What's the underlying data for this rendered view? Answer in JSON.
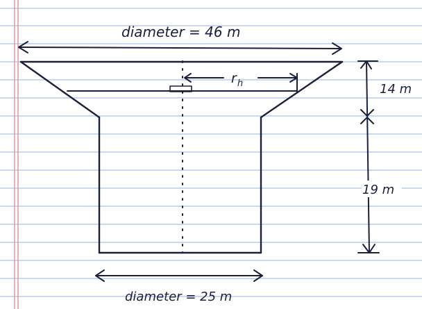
{
  "figure": {
    "top_diameter_label": "diameter = 46 m",
    "bottom_diameter_label": "diameter = 25 m",
    "radius_label": "r",
    "radius_subscript": "h",
    "top_height_label": "14 m",
    "bottom_height_label": "19 m"
  },
  "colors": {
    "paper": "#ffffff",
    "ruled_line": "#a9c4e8",
    "margin_line": "#e38c96",
    "ink": "#1a1f3a"
  }
}
